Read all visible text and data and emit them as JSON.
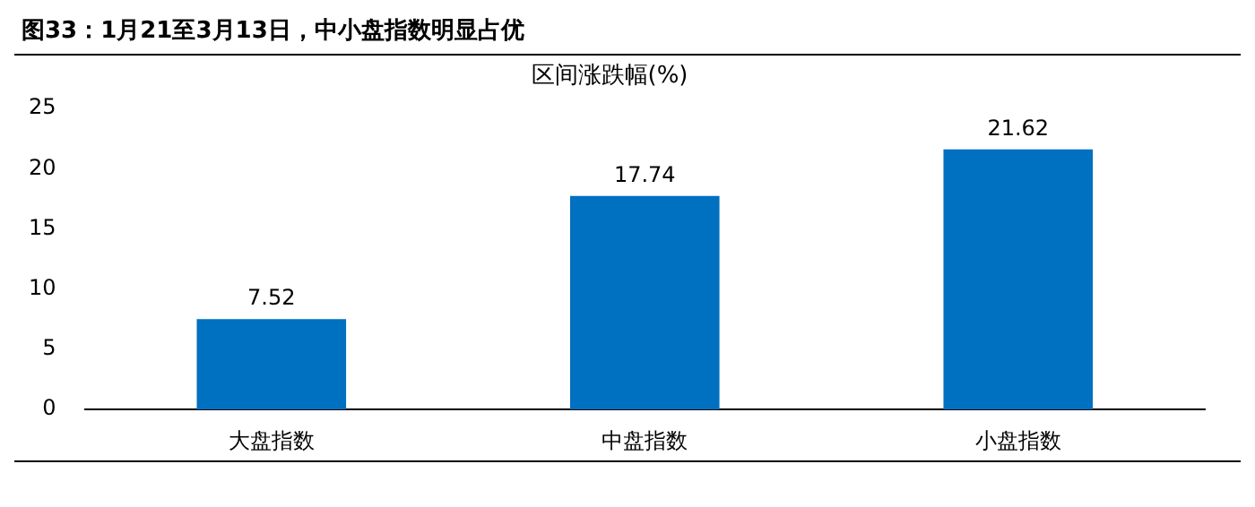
{
  "chart_data": {
    "type": "bar",
    "title": "图33：1月21至3月13日，中小盘指数明显占优",
    "subtitle": "区间涨跌幅(%)",
    "categories": [
      "大盘指数",
      "中盘指数",
      "小盘指数"
    ],
    "values": [
      7.52,
      17.74,
      21.62
    ],
    "color": "#0070c0",
    "ylim": [
      0,
      25
    ],
    "yticks": [
      0,
      5,
      10,
      15,
      20,
      25
    ],
    "grid": false,
    "legend": false,
    "data_labels": true
  }
}
